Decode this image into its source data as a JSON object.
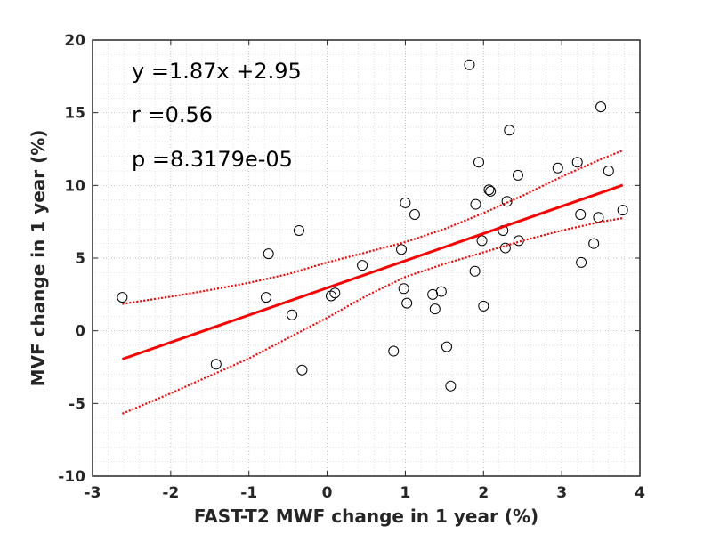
{
  "chart_data": {
    "type": "scatter",
    "xlabel": "FAST-T2 MWF change in 1 year (%)",
    "ylabel": "MVF change in 1 year (%)",
    "xlim": [
      -3,
      4
    ],
    "ylim": [
      -10,
      20
    ],
    "xticks": [
      -3,
      -2,
      -1,
      0,
      1,
      2,
      3,
      4
    ],
    "yticks": [
      -10,
      -5,
      0,
      5,
      10,
      15,
      20
    ],
    "xtick_labels": [
      "-3",
      "-2",
      "-1",
      "0",
      "1",
      "2",
      "3",
      "4"
    ],
    "ytick_labels": [
      "-10",
      "-5",
      "0",
      "5",
      "10",
      "15",
      "20"
    ],
    "grid": true,
    "minor_grid": true,
    "annotations": [
      "y =1.87x +2.95",
      "r =0.56",
      "p =8.3179e-05"
    ],
    "series": [
      {
        "kind": "points",
        "marker": "open-circle",
        "color": "#000000",
        "points": [
          [
            -2.62,
            2.3
          ],
          [
            -1.42,
            -2.3
          ],
          [
            -0.78,
            2.3
          ],
          [
            -0.75,
            5.3
          ],
          [
            -0.45,
            1.1
          ],
          [
            -0.36,
            6.9
          ],
          [
            -0.32,
            -2.7
          ],
          [
            0.05,
            2.4
          ],
          [
            0.1,
            2.6
          ],
          [
            0.45,
            4.5
          ],
          [
            0.85,
            -1.4
          ],
          [
            0.95,
            5.6
          ],
          [
            0.98,
            2.9
          ],
          [
            1.0,
            8.8
          ],
          [
            1.02,
            1.9
          ],
          [
            1.12,
            8.0
          ],
          [
            1.35,
            2.5
          ],
          [
            1.38,
            1.5
          ],
          [
            1.46,
            2.7
          ],
          [
            1.53,
            -1.1
          ],
          [
            1.58,
            -3.8
          ],
          [
            1.82,
            18.3
          ],
          [
            1.89,
            4.1
          ],
          [
            1.9,
            8.7
          ],
          [
            1.94,
            11.6
          ],
          [
            1.98,
            6.2
          ],
          [
            2.0,
            1.7
          ],
          [
            2.07,
            9.7
          ],
          [
            2.09,
            9.6
          ],
          [
            2.25,
            6.9
          ],
          [
            2.28,
            5.7
          ],
          [
            2.3,
            8.9
          ],
          [
            2.33,
            13.8
          ],
          [
            2.44,
            10.7
          ],
          [
            2.45,
            6.2
          ],
          [
            2.95,
            11.2
          ],
          [
            3.2,
            11.6
          ],
          [
            3.24,
            8.0
          ],
          [
            3.25,
            4.7
          ],
          [
            3.41,
            6.0
          ],
          [
            3.47,
            7.8
          ],
          [
            3.5,
            15.4
          ],
          [
            3.6,
            11.0
          ],
          [
            3.78,
            8.3
          ]
        ]
      },
      {
        "kind": "fit-line",
        "color": "#ff0000",
        "x": [
          -2.62,
          3.78
        ],
        "y": [
          -1.95,
          10.02
        ]
      },
      {
        "kind": "upper-ci",
        "color": "#ff0000",
        "dash": "dotted",
        "x": [
          -2.62,
          -2.0,
          -1.5,
          -1.0,
          -0.5,
          0.0,
          0.5,
          1.0,
          1.5,
          2.0,
          2.5,
          3.0,
          3.5,
          3.78
        ],
        "y": [
          1.85,
          2.35,
          2.8,
          3.3,
          3.9,
          4.7,
          5.4,
          6.1,
          7.0,
          8.1,
          9.3,
          10.6,
          11.8,
          12.4
        ]
      },
      {
        "kind": "lower-ci",
        "color": "#ff0000",
        "dash": "dotted",
        "x": [
          -2.62,
          -2.0,
          -1.5,
          -1.0,
          -0.5,
          0.0,
          0.5,
          1.0,
          1.5,
          2.0,
          2.5,
          3.0,
          3.5,
          3.78
        ],
        "y": [
          -5.7,
          -4.3,
          -3.1,
          -1.9,
          -0.5,
          0.9,
          2.4,
          3.7,
          4.6,
          5.4,
          6.2,
          6.9,
          7.5,
          7.75
        ]
      }
    ]
  }
}
